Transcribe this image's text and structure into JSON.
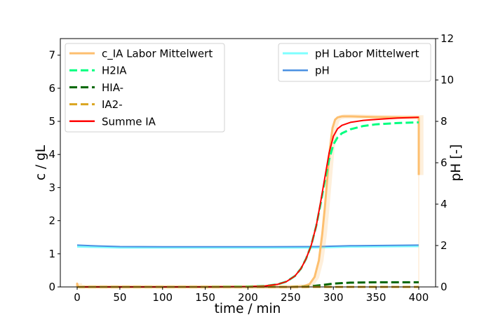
{
  "chart_data": {
    "type": "line",
    "title": "",
    "xlabel": "time / min",
    "ylabel": "c / gL",
    "ylabel_right": "pH [-]",
    "xlim": [
      -20,
      420
    ],
    "ylim": [
      0,
      7.5
    ],
    "ylim_right": [
      0,
      12
    ],
    "xticks": [
      0,
      50,
      100,
      150,
      200,
      250,
      300,
      350,
      400
    ],
    "yticks": [
      0,
      1,
      2,
      3,
      4,
      5,
      6,
      7
    ],
    "yticks_right": [
      0,
      2,
      4,
      6,
      8,
      10,
      12
    ],
    "grid": false,
    "legend_left": {
      "position": "upper left",
      "entries": [
        "c_IA Labor Mittelwert",
        "H2IA",
        "HIA-",
        "IA2-",
        "Summe IA"
      ]
    },
    "legend_right": {
      "position": "upper right",
      "entries": [
        "pH Labor Mittelwert",
        "pH"
      ]
    },
    "series": [
      {
        "name": "c_IA Labor Mittelwert",
        "axis": "left",
        "color": "#FDBF6F",
        "style": "solid",
        "width": 3,
        "x": [
          0,
          0,
          1,
          50,
          100,
          150,
          200,
          250,
          265,
          272,
          278,
          283,
          287,
          290,
          293,
          296,
          299,
          302,
          305,
          310,
          320,
          350,
          380,
          399,
          400,
          400
        ],
        "y": [
          0.0,
          0.1,
          0.0,
          0.0,
          0.0,
          0.0,
          0.0,
          0.0,
          0.02,
          0.08,
          0.3,
          0.8,
          1.6,
          2.4,
          3.3,
          4.2,
          4.8,
          5.05,
          5.12,
          5.15,
          5.15,
          5.13,
          5.12,
          5.12,
          5.12,
          3.38
        ]
      },
      {
        "name": "H2IA",
        "axis": "left",
        "color": "#00FF7F",
        "style": "dashed",
        "width": 3,
        "x": [
          0,
          50,
          100,
          150,
          200,
          220,
          235,
          245,
          255,
          262,
          268,
          274,
          280,
          285,
          290,
          295,
          300,
          305,
          310,
          320,
          335,
          350,
          375,
          400
        ],
        "y": [
          0.0,
          0.0,
          0.0,
          0.0,
          0.01,
          0.03,
          0.08,
          0.16,
          0.33,
          0.55,
          0.85,
          1.25,
          1.85,
          2.5,
          3.2,
          3.85,
          4.3,
          4.52,
          4.64,
          4.76,
          4.86,
          4.91,
          4.95,
          4.97
        ]
      },
      {
        "name": "HIA-",
        "axis": "left",
        "color": "#006400",
        "style": "dashed",
        "width": 3,
        "x": [
          0,
          100,
          200,
          250,
          270,
          285,
          300,
          320,
          350,
          400
        ],
        "y": [
          0.0,
          0.0,
          0.0,
          0.0,
          0.01,
          0.05,
          0.1,
          0.13,
          0.14,
          0.14
        ]
      },
      {
        "name": "IA2-",
        "axis": "left",
        "color": "#DAA520",
        "style": "dashed",
        "width": 3,
        "x": [
          0,
          100,
          200,
          300,
          400
        ],
        "y": [
          0.0,
          0.0,
          0.0,
          0.0,
          0.0
        ]
      },
      {
        "name": "Summe IA",
        "axis": "left",
        "color": "#FF0000",
        "style": "solid",
        "width": 2,
        "x": [
          0,
          50,
          100,
          150,
          200,
          220,
          235,
          245,
          255,
          262,
          268,
          274,
          280,
          285,
          290,
          295,
          300,
          305,
          310,
          320,
          335,
          350,
          375,
          400
        ],
        "y": [
          0.0,
          0.0,
          0.0,
          0.0,
          0.01,
          0.03,
          0.08,
          0.16,
          0.33,
          0.55,
          0.85,
          1.25,
          1.85,
          2.55,
          3.3,
          4.05,
          4.55,
          4.78,
          4.88,
          4.97,
          5.03,
          5.06,
          5.1,
          5.12
        ]
      },
      {
        "name": "pH Labor Mittelwert",
        "axis": "right",
        "color": "#7FFFFF",
        "style": "solid",
        "width": 3,
        "x": [
          0,
          25,
          50,
          100,
          200,
          280,
          320,
          400
        ],
        "y": [
          1.95,
          1.93,
          1.9,
          1.9,
          1.9,
          1.91,
          1.95,
          1.97
        ]
      },
      {
        "name": "pH",
        "axis": "right",
        "color": "#4A90E2",
        "style": "solid",
        "width": 2,
        "x": [
          0,
          25,
          50,
          100,
          200,
          280,
          320,
          400
        ],
        "y": [
          2.02,
          1.98,
          1.95,
          1.94,
          1.94,
          1.95,
          1.99,
          2.02
        ]
      }
    ]
  }
}
